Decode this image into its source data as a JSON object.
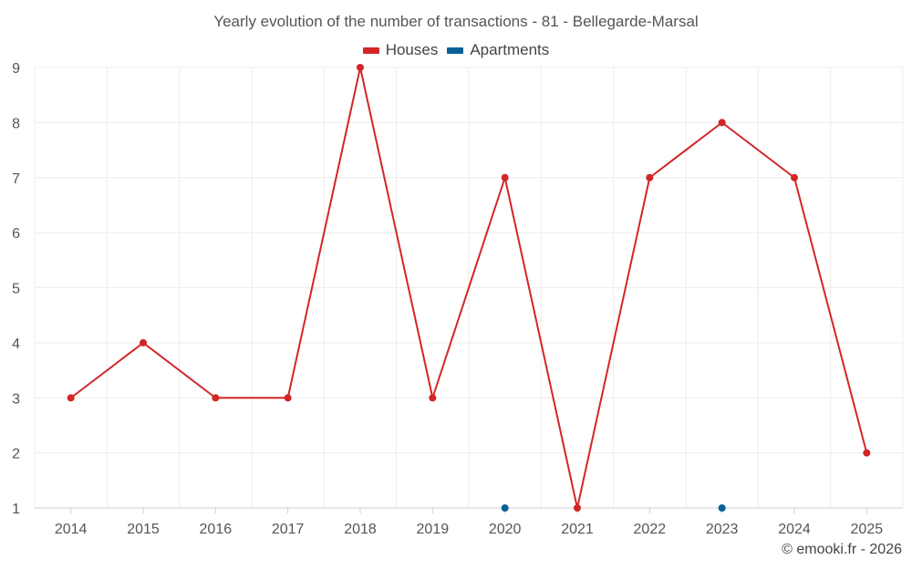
{
  "chart_data": {
    "type": "line",
    "title": "Yearly evolution of the number of transactions - 81 - Bellegarde-Marsal",
    "categories": [
      "2014",
      "2015",
      "2016",
      "2017",
      "2018",
      "2019",
      "2020",
      "2021",
      "2022",
      "2023",
      "2024",
      "2025"
    ],
    "series": [
      {
        "name": "Houses",
        "color": "#d32626",
        "values": [
          3,
          4,
          3,
          3,
          9,
          3,
          7,
          1,
          7,
          8,
          7,
          2
        ]
      },
      {
        "name": "Apartments",
        "color": "#07609a",
        "values": [
          null,
          null,
          null,
          null,
          null,
          null,
          1,
          null,
          null,
          1,
          null,
          null
        ]
      }
    ],
    "ylim": [
      1,
      9
    ],
    "yticks": [
      "1",
      "2",
      "3",
      "4",
      "5",
      "6",
      "7",
      "8",
      "9"
    ],
    "xlabel": "",
    "ylabel": "",
    "grid": true,
    "legend_position": "top-center"
  },
  "credit": "© emooki.fr - 2026"
}
